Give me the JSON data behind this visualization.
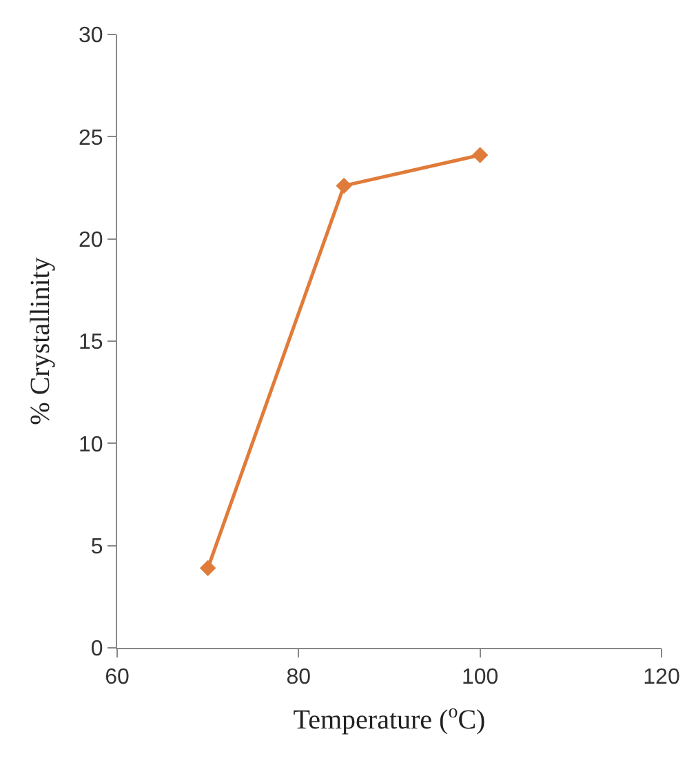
{
  "chart_data": {
    "type": "line",
    "xlabel": "Temperature ($^{o}$C)",
    "ylabel": "% Crystallinity",
    "x": [
      70,
      85,
      100
    ],
    "series": [
      {
        "color": "#e07b39",
        "values": [
          3.9,
          22.6,
          24.1
        ]
      }
    ],
    "xlim": [
      60,
      120
    ],
    "xticks": [
      60,
      80,
      100,
      120
    ],
    "ylim": [
      0,
      30
    ],
    "yticks": [
      0,
      5,
      10,
      15,
      20,
      25,
      30
    ],
    "marker": "diamond",
    "line_style": "solid"
  }
}
